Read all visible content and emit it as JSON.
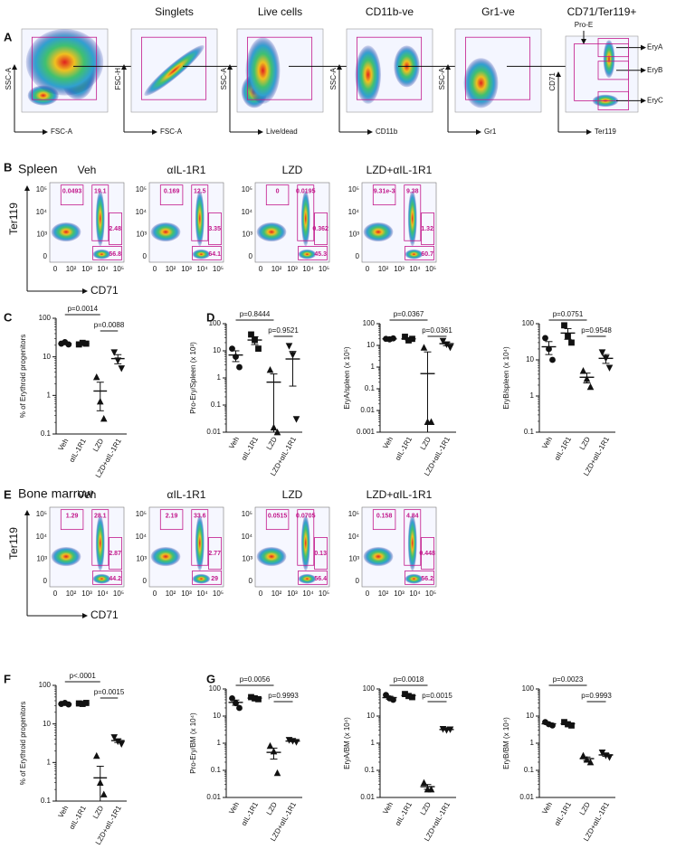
{
  "panel_labels": [
    "A",
    "B",
    "C",
    "D",
    "E",
    "F",
    "G"
  ],
  "panel_a": {
    "plots": [
      {
        "x_label": "FSC-A",
        "y_label": "SSC-A"
      },
      {
        "title": "Singlets",
        "x_label": "FSC-A",
        "y_label": "FSC-H"
      },
      {
        "title": "Live cells",
        "x_label": "Live/dead",
        "y_label": "SSC-A"
      },
      {
        "title": "CD11b-ve",
        "x_label": "CD11b",
        "y_label": "SSC-A"
      },
      {
        "title": "Gr1-ve",
        "x_label": "Gr1",
        "y_label": "SSC-A"
      },
      {
        "title": "CD71/Ter119+",
        "x_label": "Ter119",
        "y_label": "CD71",
        "gates": [
          "Pro-E",
          "EryA",
          "EryB",
          "EryC"
        ]
      }
    ]
  },
  "panel_b": {
    "title": "Spleen",
    "y_axis": "Ter119",
    "x_axis": "CD71",
    "y_ticks": [
      "10⁵",
      "10⁴",
      "10³",
      "0"
    ],
    "x_ticks": [
      "0",
      "10²",
      "10³",
      "10⁴",
      "10⁵"
    ],
    "plots": [
      {
        "title": "Veh",
        "gates": [
          0.0493,
          19.1,
          2.48,
          56.8
        ]
      },
      {
        "title": "αIL-1R1",
        "gates": [
          0.169,
          12.5,
          3.35,
          64.1
        ]
      },
      {
        "title": "LZD",
        "gates": [
          0,
          0.0195,
          0.362,
          45.3
        ]
      },
      {
        "title": "LZD+αIL-1R1",
        "gates": [
          "9.31e-3",
          9.38,
          1.32,
          60.7
        ]
      }
    ]
  },
  "panel_e": {
    "title": "Bone marrow",
    "y_axis": "Ter119",
    "x_axis": "CD71",
    "y_ticks": [
      "10⁵",
      "10⁴",
      "10³",
      "0"
    ],
    "x_ticks": [
      "0",
      "10²",
      "10³",
      "10⁴",
      "10⁵"
    ],
    "plots": [
      {
        "title": "Veh",
        "gates": [
          1.29,
          28.1,
          2.87,
          44.2
        ]
      },
      {
        "title": "αIL-1R1",
        "gates": [
          2.19,
          33.6,
          2.77,
          29
        ]
      },
      {
        "title": "LZD",
        "gates": [
          0.0515,
          0.0705,
          0.13,
          56.4
        ]
      },
      {
        "title": "LZD+αIL-1R1",
        "gates": [
          0.158,
          4.84,
          0.448,
          56.2
        ]
      }
    ]
  },
  "chart_data": [
    {
      "type": "dot",
      "y_label": "% of Erythroid progenitors",
      "log_scale": true,
      "ylim": [
        0.1,
        100
      ],
      "yticks": [
        0.1,
        1,
        10,
        100
      ],
      "categories": [
        "Veh",
        "αIL-1R1",
        "LZD",
        "LZD+αIL-1R1"
      ],
      "markers": [
        "circle",
        "square",
        "triangle",
        "triangle-down"
      ],
      "color": "#111111",
      "values": [
        [
          22,
          24,
          21
        ],
        [
          21,
          23,
          22
        ],
        [
          3,
          0.7,
          0.25
        ],
        [
          13,
          8,
          5
        ]
      ],
      "means": [
        22,
        22,
        1.3,
        9
      ],
      "errors": [
        1,
        0.7,
        0.9,
        2.4
      ],
      "comparisons": [
        {
          "between": [
            "Veh",
            "LZD"
          ],
          "label": "p=0.0014"
        },
        {
          "between": [
            "LZD",
            "LZD+αIL-1R1"
          ],
          "label": "p=0.0088"
        }
      ]
    },
    {
      "type": "dot",
      "y_label": "Pro-Ery/Spleen (x 10³)",
      "log_scale": true,
      "ylim": [
        0.01,
        100
      ],
      "yticks": [
        0.01,
        0.1,
        1,
        10,
        100
      ],
      "categories": [
        "Veh",
        "αIL-1R1",
        "LZD",
        "LZD+αIL-1R1"
      ],
      "markers": [
        "circle",
        "square",
        "triangle",
        "triangle-down"
      ],
      "color": "#111111",
      "values": [
        [
          12,
          6,
          2.5
        ],
        [
          40,
          25,
          12
        ],
        [
          2,
          0.015,
          0.01
        ],
        [
          15,
          7,
          0.03
        ]
      ],
      "means": [
        7,
        25,
        0.7,
        5
      ],
      "errors": [
        3,
        8,
        0.7,
        4.5
      ],
      "comparisons": [
        {
          "between": [
            "Veh",
            "LZD"
          ],
          "label": "p=0.8444"
        },
        {
          "between": [
            "LZD",
            "LZD+αIL-1R1"
          ],
          "label": "p=0.9521"
        }
      ]
    },
    {
      "type": "dot",
      "y_label": "EryA/spleen (x 10⁵)",
      "log_scale": true,
      "ylim": [
        0.001,
        100
      ],
      "yticks": [
        0.001,
        0.01,
        0.1,
        1,
        10,
        100
      ],
      "categories": [
        "Veh",
        "αIL-1R1",
        "LZD",
        "LZD+αIL-1R1"
      ],
      "markers": [
        "circle",
        "square",
        "triangle",
        "triangle-down"
      ],
      "color": "#111111",
      "values": [
        [
          20,
          19,
          21
        ],
        [
          25,
          17,
          20
        ],
        [
          8,
          0.003,
          0.003
        ],
        [
          16,
          11,
          8
        ]
      ],
      "means": [
        20,
        20,
        0.5,
        12
      ],
      "errors": [
        0.6,
        2.3,
        4.5,
        2.3
      ],
      "comparisons": [
        {
          "between": [
            "Veh",
            "LZD"
          ],
          "label": "p=0.0367"
        },
        {
          "between": [
            "LZD",
            "LZD+αIL-1R1"
          ],
          "label": "p=0.0361"
        }
      ]
    },
    {
      "type": "dot",
      "y_label": "EryB/spleen (x 10⁴)",
      "log_scale": true,
      "ylim": [
        0.1,
        100
      ],
      "yticks": [
        0.1,
        1,
        10,
        100
      ],
      "categories": [
        "Veh",
        "αIL-1R1",
        "LZD",
        "LZD+αIL-1R1"
      ],
      "markers": [
        "circle",
        "square",
        "triangle",
        "triangle-down"
      ],
      "color": "#111111",
      "values": [
        [
          40,
          20,
          10
        ],
        [
          90,
          45,
          30
        ],
        [
          5,
          3,
          1.8
        ],
        [
          16,
          11,
          6
        ]
      ],
      "means": [
        23,
        55,
        3.3,
        11
      ],
      "errors": [
        9,
        18,
        1,
        3
      ],
      "comparisons": [
        {
          "between": [
            "Veh",
            "LZD"
          ],
          "label": "p=0.0751"
        },
        {
          "between": [
            "LZD",
            "LZD+αIL-1R1"
          ],
          "label": "p=0.9548"
        }
      ]
    },
    {
      "type": "dot",
      "y_label": "% of Erythroid progenitors",
      "log_scale": true,
      "ylim": [
        0.1,
        100
      ],
      "yticks": [
        0.1,
        1,
        10,
        100
      ],
      "categories": [
        "Veh",
        "αIL-1R1",
        "LZD",
        "LZD+αIL-1R1"
      ],
      "markers": [
        "circle",
        "square",
        "triangle",
        "triangle-down"
      ],
      "color": "#111111",
      "values": [
        [
          33,
          35,
          32
        ],
        [
          34,
          33,
          35
        ],
        [
          1.5,
          0.3,
          0.15
        ],
        [
          4.5,
          3.5,
          3
        ]
      ],
      "means": [
        33,
        34,
        0.4,
        3.7
      ],
      "errors": [
        1,
        0.6,
        0.4,
        0.4
      ],
      "comparisons": [
        {
          "between": [
            "Veh",
            "LZD"
          ],
          "label": "p<.0001"
        },
        {
          "between": [
            "LZD",
            "LZD+αIL-1R1"
          ],
          "label": "p=0.0015"
        }
      ]
    },
    {
      "type": "dot",
      "y_label": "Pro-Ery/BM (x 10⁴)",
      "log_scale": true,
      "ylim": [
        0.01,
        100
      ],
      "yticks": [
        0.01,
        0.1,
        1,
        10,
        100
      ],
      "categories": [
        "Veh",
        "αIL-1R1",
        "LZD",
        "LZD+αIL-1R1"
      ],
      "markers": [
        "circle",
        "square",
        "triangle",
        "triangle-down"
      ],
      "color": "#111111",
      "values": [
        [
          45,
          30,
          20
        ],
        [
          50,
          45,
          42
        ],
        [
          0.8,
          0.5,
          0.08
        ],
        [
          1.3,
          1.2,
          1.1
        ]
      ],
      "means": [
        32,
        46,
        0.46,
        1.2
      ],
      "errors": [
        7,
        2.3,
        0.2,
        0.06
      ],
      "comparisons": [
        {
          "between": [
            "Veh",
            "LZD"
          ],
          "label": "p=0.0056"
        },
        {
          "between": [
            "LZD",
            "LZD+αIL-1R1"
          ],
          "label": "p=0.9993"
        }
      ]
    },
    {
      "type": "dot",
      "y_label": "EryA/BM (x 10⁴)",
      "log_scale": true,
      "ylim": [
        0.01,
        100
      ],
      "yticks": [
        0.01,
        0.1,
        1,
        10,
        100
      ],
      "categories": [
        "Veh",
        "αIL-1R1",
        "LZD",
        "LZD+αIL-1R1"
      ],
      "markers": [
        "circle",
        "square",
        "triangle",
        "triangle-down"
      ],
      "color": "#111111",
      "values": [
        [
          60,
          45,
          40
        ],
        [
          65,
          55,
          50
        ],
        [
          0.035,
          0.02,
          0.02
        ],
        [
          3.3,
          3,
          3.2
        ]
      ],
      "means": [
        48,
        57,
        0.025,
        3.2
      ],
      "errors": [
        6,
        4,
        0.005,
        0.1
      ],
      "comparisons": [
        {
          "between": [
            "Veh",
            "LZD"
          ],
          "label": "p=0.0018"
        },
        {
          "between": [
            "LZD",
            "LZD+αIL-1R1"
          ],
          "label": "p=0.0015"
        }
      ]
    },
    {
      "type": "dot",
      "y_label": "EryB/BM (x 10⁴)",
      "log_scale": true,
      "ylim": [
        0.01,
        100
      ],
      "yticks": [
        0.01,
        0.1,
        1,
        10,
        100
      ],
      "categories": [
        "Veh",
        "αIL-1R1",
        "LZD",
        "LZD+αIL-1R1"
      ],
      "markers": [
        "circle",
        "square",
        "triangle",
        "triangle-down"
      ],
      "color": "#111111",
      "values": [
        [
          6,
          5,
          4.5
        ],
        [
          6,
          5,
          4.5
        ],
        [
          0.35,
          0.25,
          0.2
        ],
        [
          0.45,
          0.35,
          0.3
        ]
      ],
      "means": [
        5.2,
        5.2,
        0.27,
        0.37
      ],
      "errors": [
        0.4,
        0.4,
        0.04,
        0.04
      ],
      "comparisons": [
        {
          "between": [
            "Veh",
            "LZD"
          ],
          "label": "p=0.0023"
        },
        {
          "between": [
            "LZD",
            "LZD+αIL-1R1"
          ],
          "label": "p=0.9993"
        }
      ]
    }
  ]
}
